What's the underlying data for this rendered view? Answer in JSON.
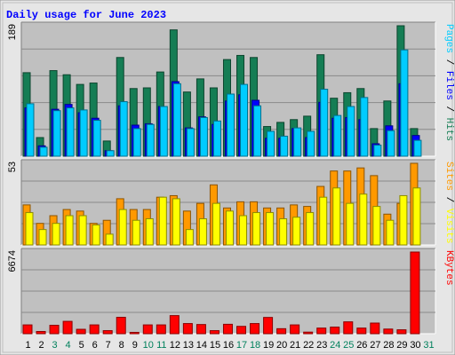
{
  "chart_data": {
    "type": "bar",
    "title": "Daily usage for June 2023",
    "categories": [
      "1",
      "2",
      "3",
      "4",
      "5",
      "6",
      "7",
      "8",
      "9",
      "10",
      "11",
      "12",
      "13",
      "14",
      "15",
      "16",
      "17",
      "18",
      "19",
      "20",
      "21",
      "22",
      "23",
      "24",
      "25",
      "26",
      "27",
      "28",
      "29",
      "30",
      "31"
    ],
    "weekend_days": [
      3,
      4,
      10,
      11,
      17,
      18,
      24,
      25,
      31
    ],
    "panels": [
      {
        "id": "hits-pages-files",
        "ymax_label": "189",
        "ymax": 189,
        "legend": [
          "Pages",
          "/",
          "Files",
          "/",
          "Hits"
        ],
        "series": [
          {
            "name": "Hits",
            "color": "#157d54",
            "values": [
              121,
              27,
              124,
              118,
              104,
              106,
              22,
              143,
              98,
              99,
              122,
              183,
              93,
              112,
              99,
              140,
              146,
              143,
              43,
              49,
              53,
              58,
              147,
              84,
              92,
              98,
              40,
              80,
              189,
              40,
              0
            ]
          },
          {
            "name": "Files",
            "color": "#0000ff",
            "values": [
              70,
              15,
              68,
              75,
              63,
              55,
              8,
              73,
              45,
              47,
              72,
              108,
              41,
              57,
              46,
              80,
              89,
              81,
              26,
              26,
              40,
              27,
              78,
              55,
              56,
              53,
              18,
              44,
              105,
              30,
              0
            ]
          },
          {
            "name": "Pages",
            "color": "#00ccff",
            "values": [
              76,
              13,
              66,
              70,
              67,
              52,
              8,
              79,
              40,
              46,
              72,
              105,
              40,
              56,
              51,
              90,
              104,
              73,
              36,
              29,
              41,
              36,
              97,
              59,
              72,
              85,
              16,
              37,
              154,
              23,
              0
            ]
          }
        ]
      },
      {
        "id": "visits-sites",
        "ymax_label": "53",
        "ymax": 53,
        "legend": [
          "Sites",
          "/",
          "Visits"
        ],
        "series": [
          {
            "name": "Visits",
            "color": "#ff9900",
            "values": [
              26,
              14,
              19,
              23,
              22,
              14,
              16,
              30,
              23,
              23,
              31,
              32,
              22,
              27,
              39,
              24,
              28,
              28,
              24,
              24,
              26,
              25,
              38,
              48,
              48,
              50,
              45,
              20,
              27,
              53,
              0
            ]
          },
          {
            "name": "Sites",
            "color": "#ffff00",
            "values": [
              21,
              10,
              14,
              19,
              19,
              13,
              7,
              23,
              16,
              17,
              31,
              30,
              10,
              17,
              27,
              22,
              19,
              21,
              21,
              17,
              18,
              21,
              31,
              37,
              27,
              33,
              25,
              16,
              32,
              37,
              0
            ]
          }
        ]
      },
      {
        "id": "kbytes",
        "ymax_label": "6674",
        "ymax": 6674,
        "legend": [
          "KBytes"
        ],
        "series": [
          {
            "name": "KBytes",
            "color": "#ff0000",
            "values": [
              720,
              180,
              690,
              1010,
              360,
              720,
              250,
              1340,
              110,
              720,
              720,
              1480,
              830,
              750,
              250,
              770,
              600,
              830,
              1330,
              410,
              720,
              130,
              460,
              540,
              970,
              460,
              870,
              380,
              320,
              6674,
              0
            ]
          }
        ]
      }
    ]
  },
  "colors": {
    "title": "#0000ff",
    "weekday_label": "#000000",
    "weekend_label": "#00805c",
    "pages": "#00ccff",
    "files": "#0000ff",
    "hits": "#157d54",
    "visits": "#ff9900",
    "sites": "#ffff00",
    "kbytes": "#ff0000",
    "plot_bg": "#c0c0c0",
    "frame": "#e6e6e6"
  }
}
